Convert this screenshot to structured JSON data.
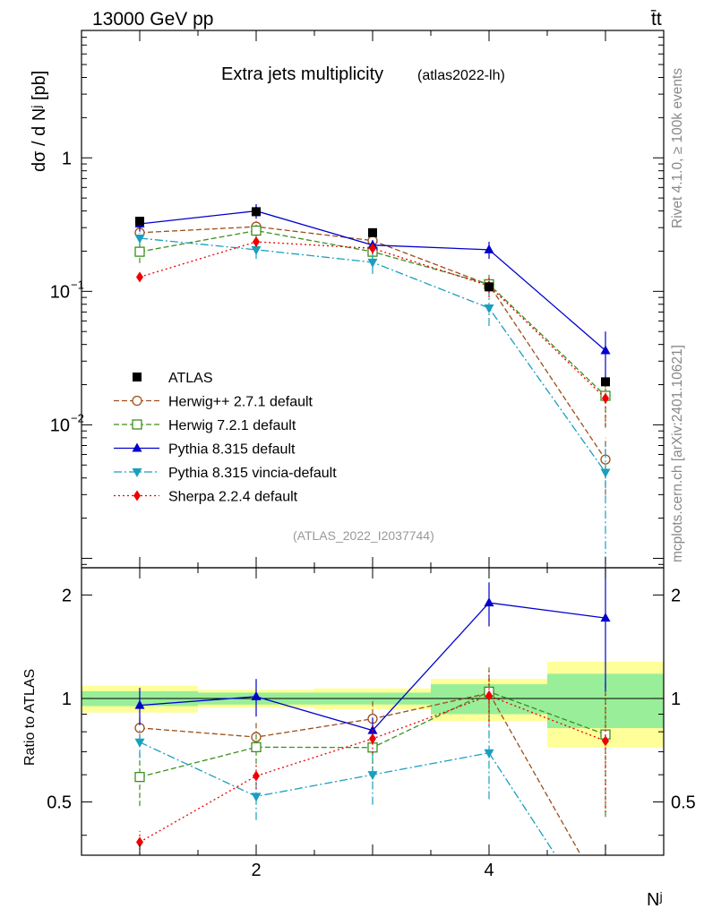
{
  "header": {
    "left": "13000 GeV pp",
    "right": "t̄t"
  },
  "side": {
    "rivet": "Rivet 4.1.0, ≥ 100k events",
    "mcplots": "mcplots.cern.ch [arXiv:2401.10621]"
  },
  "chart_data": {
    "type": "line",
    "title": "Extra jets multiplicity",
    "subtitle": "(atlas2022-lh)",
    "watermark": "(ATLAS_2022_I2037744)",
    "ylabel": "dσ / d Nʲ [pb]",
    "xlabel": "Nʲ",
    "ratio_ylabel": "Ratio to ATLAS",
    "x": [
      1,
      2,
      3,
      4,
      5
    ],
    "xlim": [
      0.5,
      5.5
    ],
    "ylim": [
      0.00085,
      9
    ],
    "ratio_ylim": [
      0.35,
      2.4
    ],
    "yticks_main": [
      {
        "v": 1,
        "base": "1",
        "exp": ""
      },
      {
        "v": 0.1,
        "base": "10",
        "exp": "−1"
      },
      {
        "v": 0.01,
        "base": "10",
        "exp": "−2"
      }
    ],
    "yticks_ratio": [
      {
        "v": 2,
        "label": "2"
      },
      {
        "v": 1,
        "label": "1"
      },
      {
        "v": 0.5,
        "label": "0.5"
      }
    ],
    "xticks": [
      {
        "v": 2,
        "label": "2"
      },
      {
        "v": 4,
        "label": "4"
      }
    ],
    "data": {
      "name": "ATLAS",
      "values": [
        0.335,
        0.395,
        0.275,
        0.108,
        0.021
      ],
      "band_inner": [
        0.05,
        0.04,
        0.04,
        0.1,
        0.18
      ],
      "band_outer": [
        0.09,
        0.06,
        0.07,
        0.14,
        0.28
      ]
    },
    "series": [
      {
        "name": "Herwig++ 2.7.1 default",
        "color": "#9c4f1a",
        "dash": "6,3",
        "marker": "circle-open",
        "values": [
          0.275,
          0.305,
          0.24,
          0.112,
          0.0055
        ],
        "err_lo": [
          0.02,
          0.03,
          0.03,
          0.015,
          0.0025
        ],
        "err_hi": [
          0.02,
          0.03,
          0.03,
          0.015,
          0.0025
        ]
      },
      {
        "name": "Herwig 7.2.1 default",
        "color": "#3d8f1f",
        "dash": "6,3",
        "marker": "square-open",
        "values": [
          0.198,
          0.285,
          0.198,
          0.113,
          0.0165
        ],
        "err_lo": [
          0.035,
          0.03,
          0.03,
          0.02,
          0.007
        ],
        "err_hi": [
          0.035,
          0.03,
          0.03,
          0.02,
          0.007
        ]
      },
      {
        "name": "Pythia 8.315 default",
        "color": "#0000cc",
        "dash": "",
        "marker": "triangle-up",
        "values": [
          0.32,
          0.4,
          0.222,
          0.205,
          0.036
        ],
        "err_lo": [
          0.04,
          0.05,
          0.02,
          0.03,
          0.014
        ],
        "err_hi": [
          0.04,
          0.05,
          0.02,
          0.03,
          0.014
        ]
      },
      {
        "name": "Pythia 8.315 vincia-default",
        "color": "#1a9fbf",
        "dash": "9,3,2,3",
        "marker": "triangle-down",
        "values": [
          0.25,
          0.205,
          0.165,
          0.075,
          0.0044
        ],
        "err_lo": [
          0.025,
          0.03,
          0.03,
          0.02,
          0.0035
        ],
        "err_hi": [
          0.025,
          0.03,
          0.03,
          0.02,
          0.003
        ]
      },
      {
        "name": "Sherpa 2.2.4 default",
        "color": "#ee0000",
        "dash": "2,3",
        "marker": "diamond",
        "values": [
          0.128,
          0.235,
          0.21,
          0.11,
          0.0158
        ],
        "err_lo": [
          0.01,
          0.02,
          0.02,
          0.02,
          0.006
        ],
        "err_hi": [
          0.01,
          0.02,
          0.02,
          0.02,
          0.006
        ]
      }
    ]
  }
}
